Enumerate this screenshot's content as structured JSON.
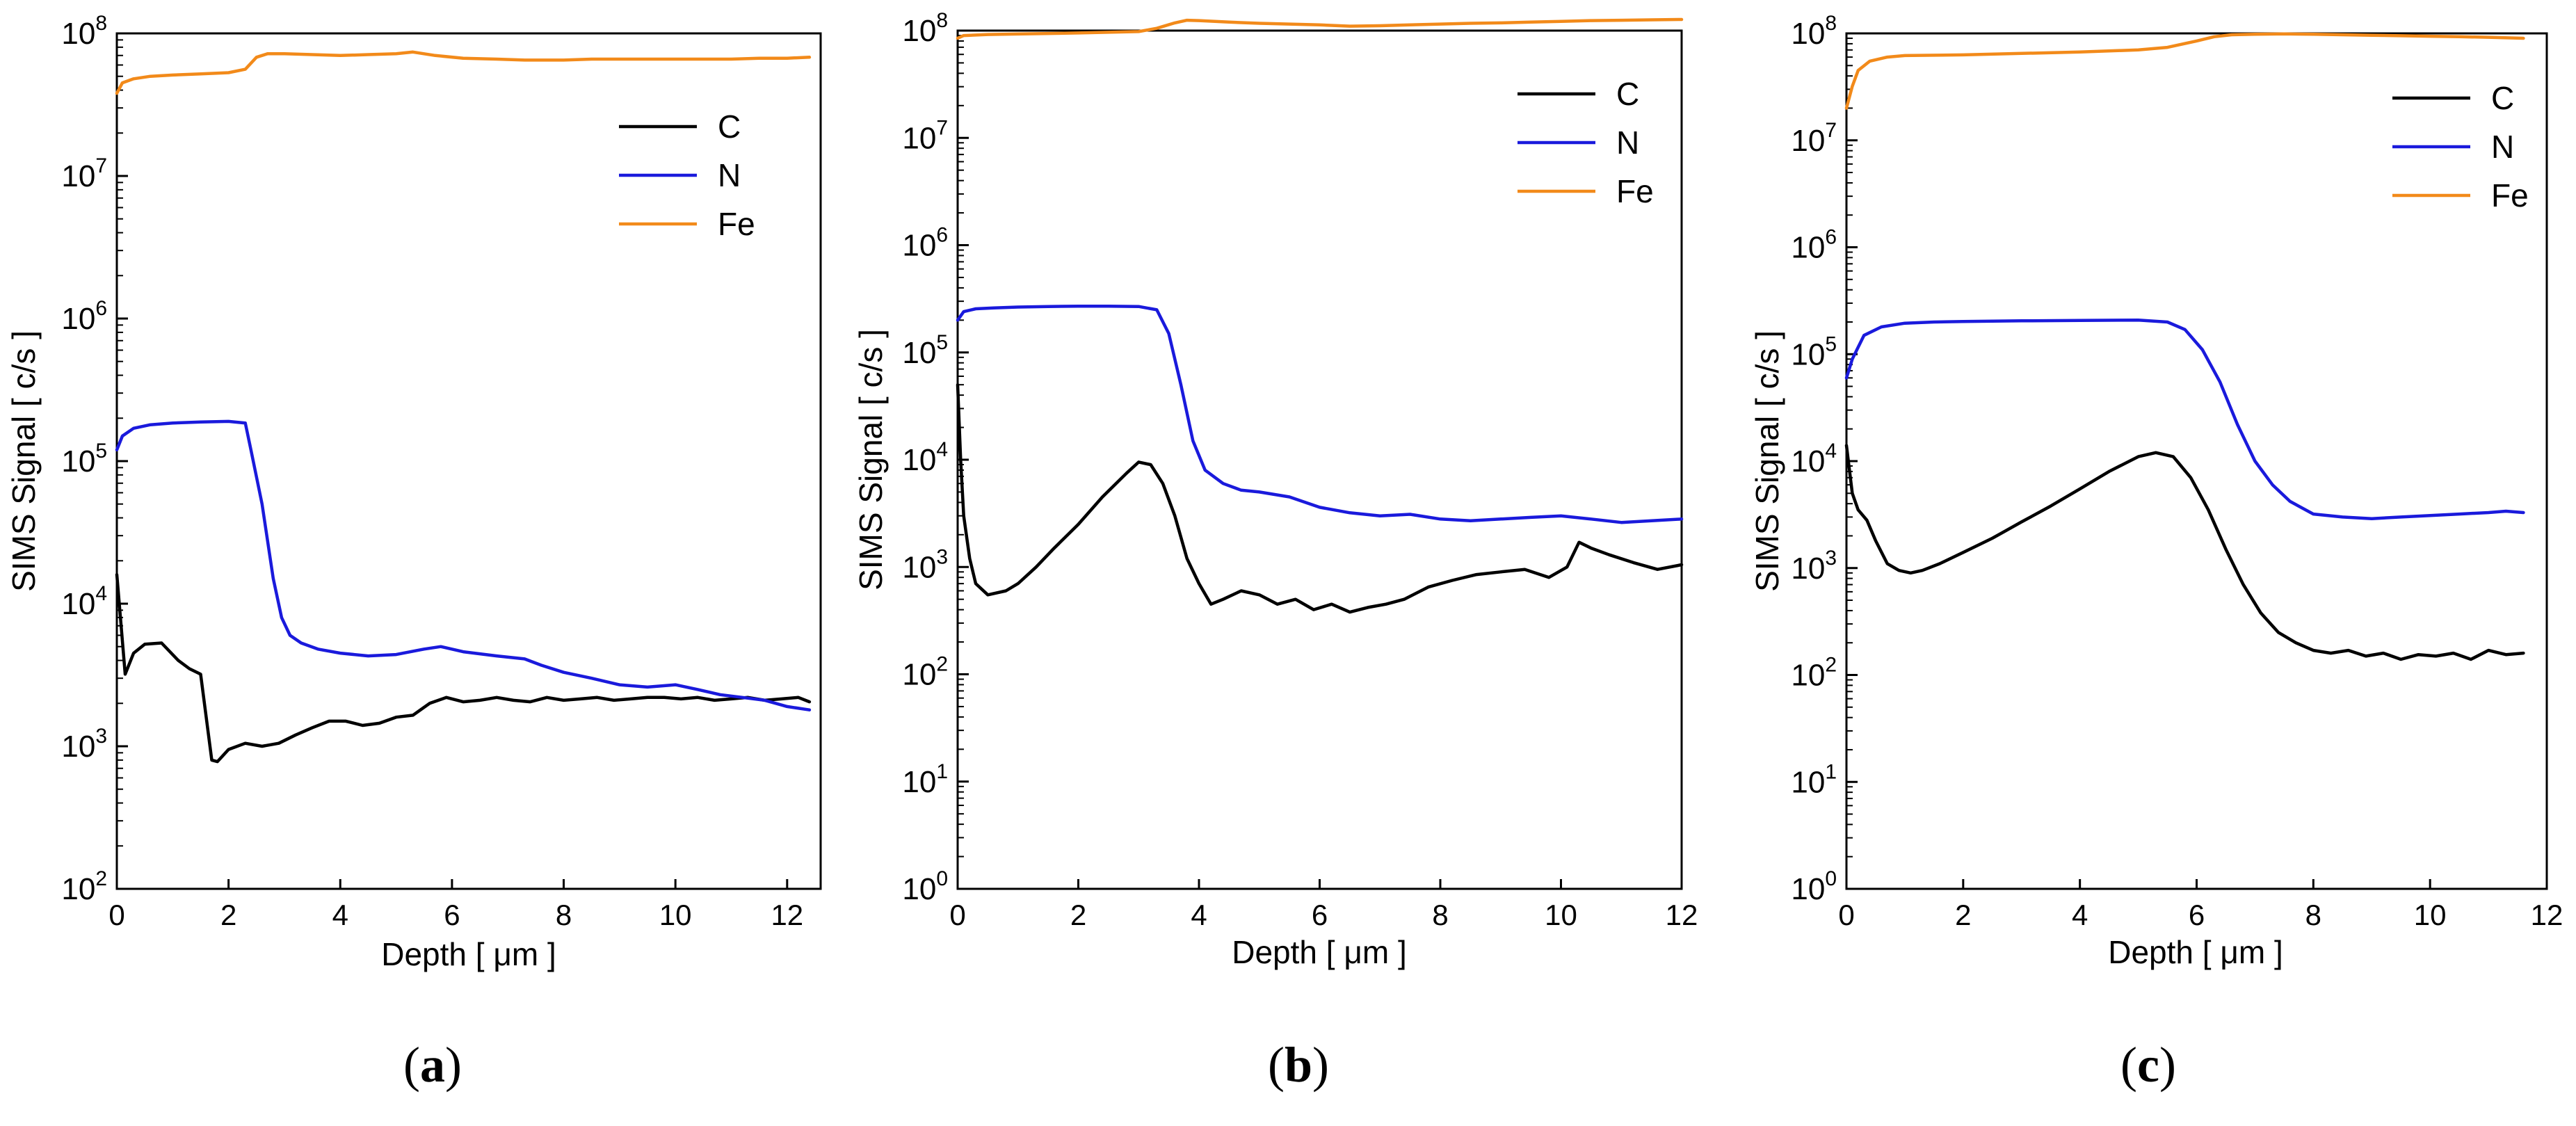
{
  "colors": {
    "C": "#000000",
    "N": "#1a1adc",
    "Fe": "#f28a1a"
  },
  "chart_data": [
    {
      "type": "line",
      "panel_label": "(a)",
      "panel_letter": "a",
      "title": "",
      "xlabel": "Depth [ μm ]",
      "ylabel": "SIMS Signal [ c/s ]",
      "y_scale": "log",
      "xlim": [
        0,
        12.6
      ],
      "ylim": [
        100,
        100000000
      ],
      "x_ticks": [
        0,
        2,
        4,
        6,
        8,
        10,
        12
      ],
      "x_tick_labels": [
        "0",
        "2",
        "4",
        "6",
        "8",
        "10",
        "12"
      ],
      "y_ticks": [
        100,
        1000,
        10000,
        100000,
        1000000,
        10000000,
        100000000
      ],
      "y_tick_bases": [
        "10",
        "10",
        "10",
        "10",
        "10",
        "10",
        "10"
      ],
      "y_tick_exps": [
        "2",
        "3",
        "4",
        "5",
        "6",
        "7",
        "8"
      ],
      "grid": false,
      "legend": "top-right",
      "series": [
        {
          "name": "C",
          "color_key": "C",
          "x": [
            0,
            0.15,
            0.3,
            0.5,
            0.8,
            1.1,
            1.3,
            1.5,
            1.6,
            1.7,
            1.8,
            2.0,
            2.3,
            2.6,
            2.9,
            3.2,
            3.5,
            3.8,
            4.1,
            4.4,
            4.7,
            5.0,
            5.3,
            5.6,
            5.9,
            6.2,
            6.5,
            6.8,
            7.1,
            7.4,
            7.7,
            8.0,
            8.3,
            8.6,
            8.9,
            9.2,
            9.5,
            9.8,
            10.1,
            10.4,
            10.7,
            11.0,
            11.3,
            11.6,
            11.9,
            12.2,
            12.4
          ],
          "y": [
            16000,
            3200,
            4500,
            5200,
            5300,
            4000,
            3500,
            3200,
            1600,
            800,
            780,
            950,
            1050,
            1000,
            1050,
            1200,
            1350,
            1500,
            1500,
            1400,
            1450,
            1600,
            1650,
            2000,
            2200,
            2050,
            2100,
            2200,
            2100,
            2050,
            2200,
            2100,
            2150,
            2200,
            2100,
            2150,
            2200,
            2200,
            2150,
            2200,
            2100,
            2150,
            2200,
            2100,
            2150,
            2200,
            2050
          ]
        },
        {
          "name": "N",
          "color_key": "N",
          "x": [
            0,
            0.1,
            0.3,
            0.6,
            1.0,
            1.5,
            2.0,
            2.3,
            2.4,
            2.6,
            2.8,
            2.95,
            3.1,
            3.3,
            3.6,
            4.0,
            4.5,
            5.0,
            5.5,
            5.8,
            6.2,
            6.8,
            7.3,
            7.6,
            8.0,
            8.5,
            9.0,
            9.5,
            10.0,
            10.4,
            10.8,
            11.2,
            11.6,
            12.0,
            12.4
          ],
          "y": [
            120000,
            150000,
            170000,
            180000,
            185000,
            188000,
            190000,
            185000,
            120000,
            50000,
            15000,
            8000,
            6000,
            5300,
            4800,
            4500,
            4300,
            4400,
            4800,
            5000,
            4600,
            4300,
            4100,
            3700,
            3300,
            3000,
            2700,
            2600,
            2700,
            2500,
            2300,
            2200,
            2100,
            1900,
            1800
          ]
        },
        {
          "name": "Fe",
          "color_key": "Fe",
          "x": [
            0,
            0.1,
            0.3,
            0.6,
            1.0,
            1.5,
            2.0,
            2.3,
            2.5,
            2.7,
            3.0,
            3.5,
            4.0,
            4.5,
            5.0,
            5.3,
            5.7,
            6.2,
            6.8,
            7.3,
            8.0,
            8.5,
            9.0,
            9.5,
            10.0,
            10.5,
            11.0,
            11.5,
            12.0,
            12.4
          ],
          "y": [
            38000000,
            45000000,
            48000000,
            50000000,
            51000000,
            52000000,
            53000000,
            56000000,
            68000000,
            72000000,
            72000000,
            71000000,
            70000000,
            71000000,
            72000000,
            74000000,
            70000000,
            67000000,
            66000000,
            65000000,
            65000000,
            66000000,
            66000000,
            66000000,
            66000000,
            66000000,
            66000000,
            67000000,
            67000000,
            68000000
          ]
        }
      ]
    },
    {
      "type": "line",
      "panel_label": "(b)",
      "panel_letter": "b",
      "title": "",
      "xlabel": "Depth [ μm ]",
      "ylabel": "SIMS Signal [ c/s ]",
      "y_scale": "log",
      "xlim": [
        0,
        12
      ],
      "ylim": [
        1,
        100000000
      ],
      "x_ticks": [
        0,
        2,
        4,
        6,
        8,
        10,
        12
      ],
      "x_tick_labels": [
        "0",
        "2",
        "4",
        "6",
        "8",
        "10",
        "12"
      ],
      "y_ticks": [
        1,
        10,
        100,
        1000,
        10000,
        100000,
        1000000,
        10000000,
        100000000
      ],
      "y_tick_bases": [
        "10",
        "10",
        "10",
        "10",
        "10",
        "10",
        "10",
        "10",
        "10"
      ],
      "y_tick_exps": [
        "0",
        "1",
        "2",
        "3",
        "4",
        "5",
        "6",
        "7",
        "8"
      ],
      "grid": false,
      "legend": "top-right",
      "series": [
        {
          "name": "C",
          "color_key": "C",
          "x": [
            0,
            0.05,
            0.1,
            0.2,
            0.3,
            0.5,
            0.8,
            1.0,
            1.3,
            1.6,
            2.0,
            2.4,
            2.8,
            3.0,
            3.2,
            3.4,
            3.6,
            3.8,
            4.0,
            4.2,
            4.4,
            4.7,
            5.0,
            5.3,
            5.6,
            5.9,
            6.2,
            6.5,
            6.8,
            7.1,
            7.4,
            7.8,
            8.2,
            8.6,
            9.0,
            9.4,
            9.8,
            10.1,
            10.3,
            10.5,
            10.8,
            11.2,
            11.6,
            12.0
          ],
          "y": [
            50000,
            10000,
            3000,
            1200,
            700,
            550,
            600,
            700,
            1000,
            1500,
            2500,
            4500,
            7500,
            9500,
            9000,
            6000,
            3000,
            1200,
            700,
            450,
            500,
            600,
            550,
            450,
            500,
            400,
            450,
            380,
            420,
            450,
            500,
            650,
            750,
            850,
            900,
            950,
            800,
            1000,
            1700,
            1500,
            1300,
            1100,
            950,
            1050
          ]
        },
        {
          "name": "N",
          "color_key": "N",
          "x": [
            0,
            0.1,
            0.3,
            0.6,
            1.0,
            1.5,
            2.0,
            2.5,
            3.0,
            3.3,
            3.5,
            3.7,
            3.9,
            4.1,
            4.4,
            4.7,
            5.0,
            5.5,
            6.0,
            6.5,
            7.0,
            7.5,
            8.0,
            8.5,
            9.0,
            9.5,
            10.0,
            10.5,
            11.0,
            11.5,
            12.0
          ],
          "y": [
            200000,
            240000,
            255000,
            260000,
            265000,
            268000,
            270000,
            270000,
            268000,
            250000,
            150000,
            50000,
            15000,
            8000,
            6000,
            5200,
            5000,
            4500,
            3600,
            3200,
            3000,
            3100,
            2800,
            2700,
            2800,
            2900,
            3000,
            2800,
            2600,
            2700,
            2800
          ]
        },
        {
          "name": "Fe",
          "color_key": "Fe",
          "x": [
            0,
            0.1,
            0.5,
            1.0,
            2.0,
            3.0,
            3.3,
            3.6,
            3.8,
            4.0,
            4.5,
            5.0,
            5.5,
            6.0,
            6.5,
            7.0,
            7.5,
            8.0,
            8.5,
            9.0,
            9.5,
            10.0,
            10.5,
            11.0,
            11.5,
            12.0
          ],
          "y": [
            85000000,
            90000000,
            92000000,
            93000000,
            95000000,
            98000000,
            105000000,
            118000000,
            125000000,
            124000000,
            120000000,
            117000000,
            115000000,
            113000000,
            110000000,
            111000000,
            113000000,
            115000000,
            117000000,
            118000000,
            120000000,
            122000000,
            124000000,
            125000000,
            126000000,
            127000000
          ]
        }
      ]
    },
    {
      "type": "line",
      "panel_label": "(c)",
      "panel_letter": "c",
      "title": "",
      "xlabel": "Depth [ μm ]",
      "ylabel": "SIMS Signal [ c/s ]",
      "y_scale": "log",
      "xlim": [
        0,
        12
      ],
      "ylim": [
        1,
        100000000
      ],
      "x_ticks": [
        0,
        2,
        4,
        6,
        8,
        10,
        12
      ],
      "x_tick_labels": [
        "0",
        "2",
        "4",
        "6",
        "8",
        "10",
        "12"
      ],
      "y_ticks": [
        1,
        10,
        100,
        1000,
        10000,
        100000,
        1000000,
        10000000,
        100000000
      ],
      "y_tick_bases": [
        "10",
        "10",
        "10",
        "10",
        "10",
        "10",
        "10",
        "10",
        "10"
      ],
      "y_tick_exps": [
        "0",
        "1",
        "2",
        "3",
        "4",
        "5",
        "6",
        "7",
        "8"
      ],
      "grid": false,
      "legend": "top-right",
      "series": [
        {
          "name": "C",
          "color_key": "C",
          "x": [
            0,
            0.1,
            0.2,
            0.35,
            0.5,
            0.7,
            0.9,
            1.1,
            1.3,
            1.6,
            2.0,
            2.5,
            3.0,
            3.5,
            4.0,
            4.5,
            5.0,
            5.3,
            5.6,
            5.9,
            6.2,
            6.5,
            6.8,
            7.1,
            7.4,
            7.7,
            8.0,
            8.3,
            8.6,
            8.9,
            9.2,
            9.5,
            9.8,
            10.1,
            10.4,
            10.7,
            11.0,
            11.3,
            11.6
          ],
          "y": [
            14000,
            5000,
            3500,
            2800,
            1800,
            1100,
            950,
            900,
            950,
            1100,
            1400,
            1900,
            2700,
            3800,
            5500,
            8000,
            11000,
            12000,
            11000,
            7000,
            3500,
            1500,
            700,
            380,
            250,
            200,
            170,
            160,
            170,
            150,
            160,
            140,
            155,
            150,
            160,
            140,
            170,
            155,
            160
          ]
        },
        {
          "name": "N",
          "color_key": "N",
          "x": [
            0,
            0.1,
            0.3,
            0.6,
            1.0,
            1.5,
            2.0,
            3.0,
            4.0,
            5.0,
            5.5,
            5.8,
            6.1,
            6.4,
            6.7,
            7.0,
            7.3,
            7.6,
            8.0,
            8.5,
            9.0,
            9.5,
            10.0,
            10.5,
            11.0,
            11.3,
            11.6
          ],
          "y": [
            60000,
            90000,
            150000,
            180000,
            195000,
            200000,
            202000,
            205000,
            207000,
            208000,
            200000,
            170000,
            110000,
            55000,
            22000,
            10000,
            6000,
            4200,
            3200,
            3000,
            2900,
            3000,
            3100,
            3200,
            3300,
            3400,
            3300
          ]
        },
        {
          "name": "Fe",
          "color_key": "Fe",
          "x": [
            0,
            0.1,
            0.2,
            0.4,
            0.7,
            1.0,
            2.0,
            3.0,
            4.0,
            5.0,
            5.5,
            6.0,
            6.3,
            6.6,
            7.0,
            7.5,
            8.0,
            8.5,
            9.0,
            9.5,
            10.0,
            10.5,
            11.0,
            11.6
          ],
          "y": [
            20000000,
            32000000,
            45000000,
            55000000,
            60000000,
            62000000,
            63000000,
            65000000,
            67000000,
            70000000,
            74000000,
            85000000,
            93000000,
            97000000,
            98000000,
            99000000,
            98000000,
            97000000,
            96000000,
            95000000,
            94000000,
            93000000,
            92000000,
            90000000
          ]
        }
      ]
    }
  ]
}
